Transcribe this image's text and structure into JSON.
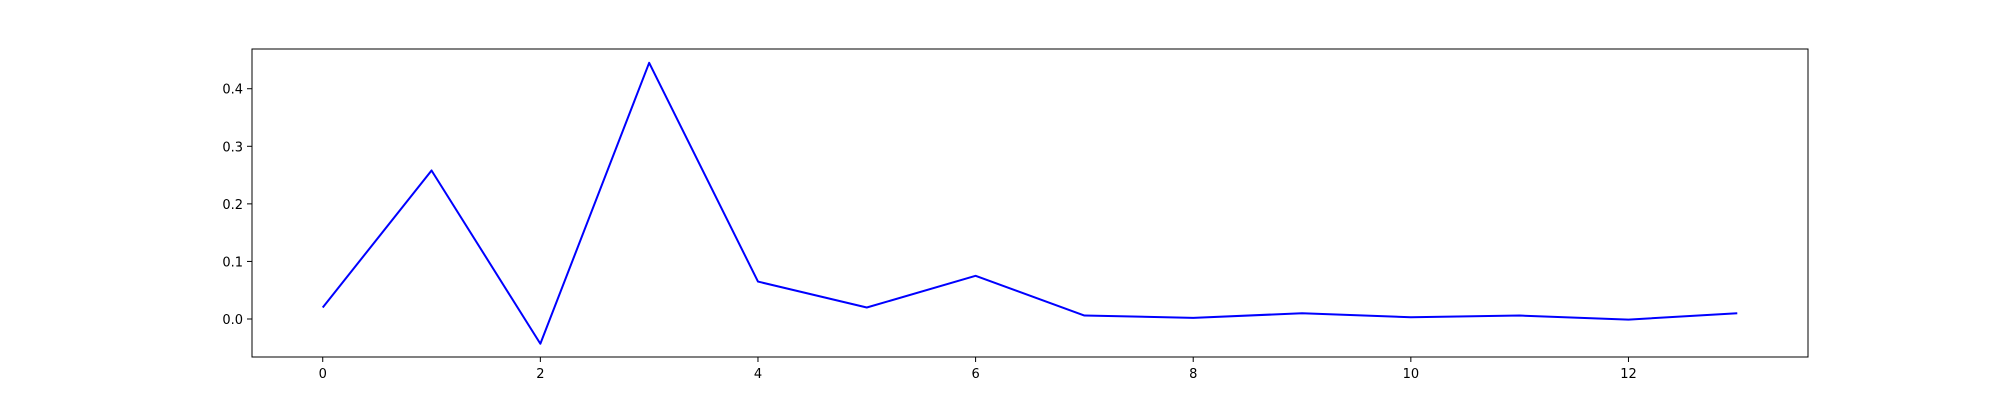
{
  "chart_data": {
    "type": "line",
    "title": "",
    "xlabel": "",
    "ylabel": "",
    "x": [
      0,
      1,
      2,
      3,
      4,
      5,
      6,
      7,
      8,
      9,
      10,
      11,
      12,
      13
    ],
    "series": [
      {
        "color": "#0000ff",
        "values": [
          0.02,
          0.258,
          -0.043,
          0.445,
          0.065,
          0.02,
          0.075,
          0.006,
          0.002,
          0.01,
          0.003,
          0.006,
          -0.001,
          0.01
        ]
      }
    ],
    "xlim": [
      -0.65,
      13.65
    ],
    "ylim": [
      -0.066,
      0.469
    ],
    "xticks": [
      0,
      2,
      4,
      6,
      8,
      10,
      12
    ],
    "xtick_labels": [
      "0",
      "2",
      "4",
      "6",
      "8",
      "10",
      "12"
    ],
    "yticks": [
      0.0,
      0.1,
      0.2,
      0.3,
      0.4
    ],
    "ytick_labels": [
      "0.0",
      "0.1",
      "0.2",
      "0.3",
      "0.4"
    ],
    "grid": false,
    "legend": "none"
  }
}
